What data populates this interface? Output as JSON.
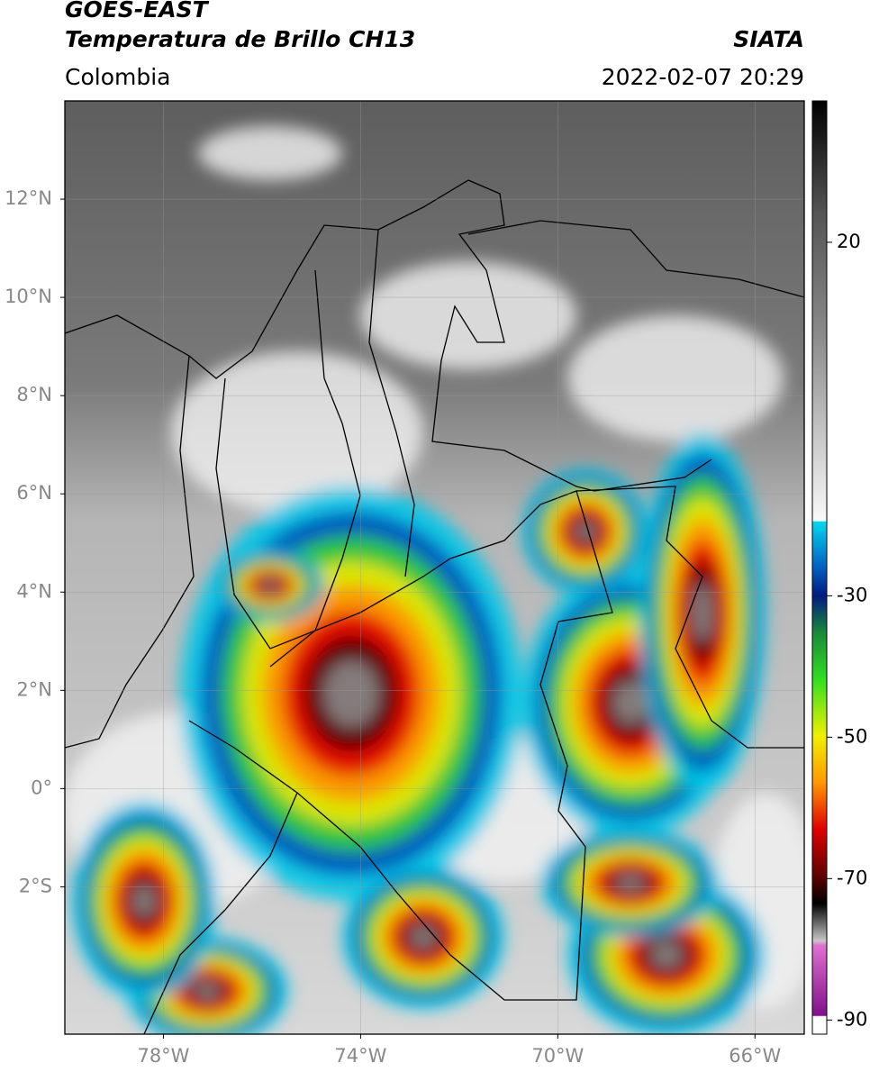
{
  "chart_data": {
    "type": "map",
    "title": "GOES-EAST",
    "subtitle": "Temperatura de Brillo CH13",
    "source": "SIATA",
    "region": "Colombia",
    "timestamp": "2022-02-07 20:29",
    "xlim": [
      -80,
      -65
    ],
    "ylim": [
      -5,
      14
    ],
    "xticks": [
      {
        "value": -78,
        "label": "78°W"
      },
      {
        "value": -74,
        "label": "74°W"
      },
      {
        "value": -70,
        "label": "70°W"
      },
      {
        "value": -66,
        "label": "66°W"
      }
    ],
    "yticks": [
      {
        "value": 12,
        "label": "12°N"
      },
      {
        "value": 10,
        "label": "10°N"
      },
      {
        "value": 8,
        "label": "8°N"
      },
      {
        "value": 6,
        "label": "6°N"
      },
      {
        "value": 4,
        "label": "4°N"
      },
      {
        "value": 2,
        "label": "2°N"
      },
      {
        "value": 0,
        "label": "0°"
      },
      {
        "value": -2,
        "label": "2°S"
      }
    ],
    "clim": [
      -92,
      40
    ],
    "cticks": [
      20,
      -30,
      -50,
      -70,
      -90
    ],
    "grid": true
  }
}
